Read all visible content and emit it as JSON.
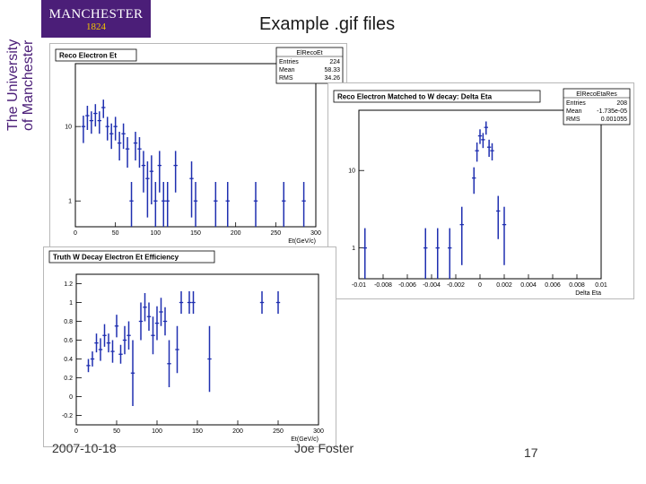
{
  "logo": {
    "line1": "MANCHESTER",
    "line2": "1824"
  },
  "university": {
    "line1": "The University",
    "line2": "of Manchester"
  },
  "slide": {
    "title": "Example .gif files",
    "date": "2007-10-18",
    "author": "Joe Foster",
    "page_number": "17"
  },
  "colors": {
    "data_marker": "#1f2fb0",
    "logo_bg": "#4b1e78",
    "logo_year": "#f2c400",
    "frame": "#000000"
  },
  "chart_data": [
    {
      "type": "scatter",
      "title": "Reco Electron Et",
      "xlabel": "Et(GeV/c)",
      "ylabel": "",
      "xlim": [
        0,
        300
      ],
      "ylim": [
        0.45,
        70
      ],
      "yscale": "log",
      "xticks": [
        0,
        50,
        100,
        150,
        200,
        250,
        300
      ],
      "yticks": [
        {
          "v": 1,
          "label": "1"
        },
        {
          "v": 10,
          "label": "10"
        }
      ],
      "stats": {
        "name": "ElRecoEt",
        "rows": [
          [
            "Entries",
            "224"
          ],
          [
            "Mean",
            "58.33"
          ],
          [
            "RMS",
            "34.26"
          ]
        ]
      },
      "points": [
        {
          "x": 10,
          "y": 10,
          "e": 4
        },
        {
          "x": 15,
          "y": 14,
          "e": 5
        },
        {
          "x": 20,
          "y": 12,
          "e": 4
        },
        {
          "x": 25,
          "y": 15,
          "e": 5
        },
        {
          "x": 30,
          "y": 12,
          "e": 4
        },
        {
          "x": 35,
          "y": 18,
          "e": 5
        },
        {
          "x": 40,
          "y": 10,
          "e": 3.5
        },
        {
          "x": 45,
          "y": 8,
          "e": 3
        },
        {
          "x": 50,
          "y": 10,
          "e": 3.5
        },
        {
          "x": 55,
          "y": 6,
          "e": 2.5
        },
        {
          "x": 60,
          "y": 8,
          "e": 3
        },
        {
          "x": 65,
          "y": 5,
          "e": 2.2
        },
        {
          "x": 70,
          "y": 1,
          "e": 0.8
        },
        {
          "x": 75,
          "y": 6,
          "e": 2.5
        },
        {
          "x": 80,
          "y": 5,
          "e": 2.2
        },
        {
          "x": 85,
          "y": 3,
          "e": 1.7
        },
        {
          "x": 90,
          "y": 2,
          "e": 1.4
        },
        {
          "x": 95,
          "y": 2.5,
          "e": 1.6
        },
        {
          "x": 100,
          "y": 1,
          "e": 0.8
        },
        {
          "x": 105,
          "y": 3,
          "e": 1.7
        },
        {
          "x": 110,
          "y": 1,
          "e": 0.8
        },
        {
          "x": 115,
          "y": 1,
          "e": 0.8
        },
        {
          "x": 125,
          "y": 3,
          "e": 1.7
        },
        {
          "x": 145,
          "y": 2,
          "e": 1.4
        },
        {
          "x": 150,
          "y": 1,
          "e": 0.8
        },
        {
          "x": 175,
          "y": 1,
          "e": 0.8
        },
        {
          "x": 190,
          "y": 1,
          "e": 0.8
        },
        {
          "x": 225,
          "y": 1,
          "e": 0.8
        },
        {
          "x": 260,
          "y": 1,
          "e": 0.8
        },
        {
          "x": 285,
          "y": 1,
          "e": 0.8
        }
      ]
    },
    {
      "type": "scatter",
      "title": "Reco Electron Matched to W decay:  Delta Eta",
      "xlabel": "Delta Eta",
      "ylabel": "",
      "xlim": [
        -0.01,
        0.01
      ],
      "ylim": [
        0.4,
        60
      ],
      "yscale": "log",
      "xticks": [
        -0.01,
        -0.008,
        -0.006,
        -0.004,
        -0.002,
        0,
        0.002,
        0.004,
        0.006,
        0.008,
        0.01
      ],
      "xtick_labels": [
        "-0.01",
        "-0.008",
        "-0.006",
        "-0.004",
        "-0.002",
        "0",
        "0.002",
        "0.004",
        "0.006",
        "0.008",
        "0.01"
      ],
      "yticks": [
        {
          "v": 1,
          "label": "1"
        },
        {
          "v": 10,
          "label": "10"
        }
      ],
      "stats": {
        "name": "ElRecoEtaRes",
        "rows": [
          [
            "Entries",
            "208"
          ],
          [
            "Mean",
            "-1.735e-05"
          ],
          [
            "RMS",
            "0.001055"
          ]
        ]
      },
      "points": [
        {
          "x": -0.0095,
          "y": 1,
          "e": 0.8
        },
        {
          "x": -0.0045,
          "y": 1,
          "e": 0.8
        },
        {
          "x": -0.0035,
          "y": 1,
          "e": 0.8
        },
        {
          "x": -0.0025,
          "y": 1,
          "e": 0.8
        },
        {
          "x": -0.0015,
          "y": 2,
          "e": 1.4
        },
        {
          "x": -0.0005,
          "y": 8,
          "e": 3
        },
        {
          "x": -0.00025,
          "y": 18,
          "e": 5
        },
        {
          "x": 0.0,
          "y": 28,
          "e": 6
        },
        {
          "x": 0.00025,
          "y": 25,
          "e": 5.5
        },
        {
          "x": 0.0005,
          "y": 36,
          "e": 7
        },
        {
          "x": 0.00075,
          "y": 20,
          "e": 5
        },
        {
          "x": 0.001,
          "y": 18,
          "e": 4.5
        },
        {
          "x": 0.0015,
          "y": 3,
          "e": 1.7
        },
        {
          "x": 0.002,
          "y": 2,
          "e": 1.4
        }
      ]
    },
    {
      "type": "scatter",
      "title": "Truth W Decay Electron  Et Efficiency",
      "xlabel": "Et(GeV/c)",
      "ylabel": "",
      "xlim": [
        0,
        300
      ],
      "ylim": [
        -0.3,
        1.3
      ],
      "xticks": [
        0,
        50,
        100,
        150,
        200,
        250,
        300
      ],
      "yticks": [
        {
          "v": -0.2,
          "label": "-0.2"
        },
        {
          "v": 0,
          "label": "0"
        },
        {
          "v": 0.2,
          "label": "0.2"
        },
        {
          "v": 0.4,
          "label": "0.4"
        },
        {
          "v": 0.6,
          "label": "0.6"
        },
        {
          "v": 0.8,
          "label": "0.8"
        },
        {
          "v": 1,
          "label": "1"
        },
        {
          "v": 1.2,
          "label": "1.2"
        }
      ],
      "points": [
        {
          "x": 15,
          "y": 0.33,
          "e": 0.07
        },
        {
          "x": 20,
          "y": 0.4,
          "e": 0.08
        },
        {
          "x": 25,
          "y": 0.57,
          "e": 0.1
        },
        {
          "x": 30,
          "y": 0.5,
          "e": 0.12
        },
        {
          "x": 35,
          "y": 0.65,
          "e": 0.12
        },
        {
          "x": 40,
          "y": 0.57,
          "e": 0.1
        },
        {
          "x": 45,
          "y": 0.48,
          "e": 0.12
        },
        {
          "x": 50,
          "y": 0.75,
          "e": 0.12
        },
        {
          "x": 55,
          "y": 0.45,
          "e": 0.1
        },
        {
          "x": 60,
          "y": 0.6,
          "e": 0.15
        },
        {
          "x": 65,
          "y": 0.65,
          "e": 0.15
        },
        {
          "x": 70,
          "y": 0.25,
          "e": 0.35
        },
        {
          "x": 80,
          "y": 0.8,
          "e": 0.2
        },
        {
          "x": 85,
          "y": 0.95,
          "e": 0.15
        },
        {
          "x": 90,
          "y": 0.85,
          "e": 0.15
        },
        {
          "x": 95,
          "y": 0.65,
          "e": 0.2
        },
        {
          "x": 100,
          "y": 0.78,
          "e": 0.18
        },
        {
          "x": 105,
          "y": 0.9,
          "e": 0.15
        },
        {
          "x": 110,
          "y": 0.8,
          "e": 0.15
        },
        {
          "x": 115,
          "y": 0.35,
          "e": 0.25
        },
        {
          "x": 125,
          "y": 0.5,
          "e": 0.25
        },
        {
          "x": 130,
          "y": 1.0,
          "e": 0.12
        },
        {
          "x": 140,
          "y": 1.0,
          "e": 0.12
        },
        {
          "x": 145,
          "y": 1.0,
          "e": 0.12
        },
        {
          "x": 165,
          "y": 0.4,
          "e": 0.35
        },
        {
          "x": 230,
          "y": 1.0,
          "e": 0.12
        },
        {
          "x": 250,
          "y": 1.0,
          "e": 0.12
        }
      ]
    }
  ]
}
